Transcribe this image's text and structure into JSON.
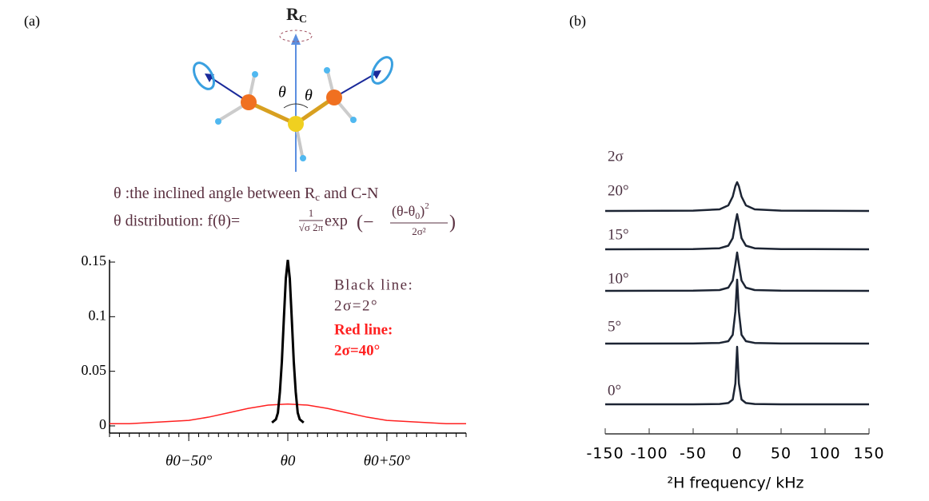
{
  "panel_labels": [
    "(a)",
    "(b)"
  ],
  "diagram": {
    "axis_label": "R",
    "axis_label_sub": "C",
    "angle_labels": [
      "θ",
      "θ"
    ]
  },
  "definition": {
    "text": "θ :the inclined angle between R",
    "sub": "c",
    "tail": " and C-N"
  },
  "formula": {
    "lead": "θ distribution: f(θ)=",
    "numerator": "1",
    "denominator": "√σ 2π",
    "func": "exp",
    "open": "(−",
    "num2": "(θ-θ",
    "num2_sub": "0",
    "num2_close": ")",
    "num2_sup": "2",
    "den2": "2σ²",
    "close": ")"
  },
  "chart_data": [
    {
      "type": "line",
      "xlim": [
        -90,
        90
      ],
      "ylim": [
        -0.0066,
        0.1522
      ],
      "xticks": [
        {
          "value": -50,
          "label": "θ0−50°"
        },
        {
          "value": 0,
          "label": "θ0"
        },
        {
          "value": 50,
          "label": "θ0+50°"
        }
      ],
      "minor_xticks": [
        -90,
        -85,
        -80,
        -75,
        -70,
        -65,
        -60,
        -55,
        -50,
        -45,
        -40,
        -35,
        -30,
        -25,
        -20,
        -15,
        -10,
        -5,
        0,
        5,
        10,
        15,
        20,
        25,
        30,
        35,
        40,
        45,
        50,
        55,
        60,
        65,
        70,
        75,
        80,
        85,
        90
      ],
      "yticks": [
        0,
        0.05,
        0.1,
        0.15
      ],
      "series": [
        {
          "name": "Black line:",
          "label": "2σ=2°",
          "color": "#000000",
          "x": [
            -8,
            -6,
            -5,
            -4,
            -3,
            -2,
            -1,
            0,
            1,
            2,
            3,
            4,
            5,
            6,
            8
          ],
          "values": [
            0.003,
            0.006,
            0.012,
            0.031,
            0.059,
            0.098,
            0.135,
            0.152,
            0.135,
            0.098,
            0.059,
            0.031,
            0.012,
            0.006,
            0.003
          ]
        },
        {
          "name": "Red line:",
          "label": "2σ=40°",
          "color": "#ff2020",
          "x": [
            -90,
            -80,
            -70,
            -60,
            -50,
            -40,
            -30,
            -20,
            -10,
            0,
            10,
            20,
            30,
            40,
            50,
            60,
            70,
            80,
            90
          ],
          "values": [
            0.002,
            0.002,
            0.003,
            0.004,
            0.005,
            0.008,
            0.012,
            0.016,
            0.019,
            0.02,
            0.019,
            0.016,
            0.012,
            0.008,
            0.005,
            0.004,
            0.003,
            0.002,
            0.002
          ]
        }
      ]
    },
    {
      "type": "ridgeline",
      "title": "2σ",
      "xlabel": "²H frequency/ kHz",
      "xlim": [
        -150,
        150
      ],
      "xticks": [
        -150,
        -100,
        -50,
        0,
        50,
        100,
        150
      ],
      "x": [
        -150,
        -50,
        -20,
        -10,
        -5,
        -2,
        0,
        2,
        5,
        10,
        20,
        50,
        150
      ],
      "series": [
        {
          "name": "20°",
          "color": "#1c2433",
          "values": [
            0,
            0.4,
            2,
            7,
            18,
            31,
            36,
            31,
            18,
            7,
            2,
            0.4,
            0
          ]
        },
        {
          "name": "15°",
          "color": "#1c2433",
          "values": [
            0,
            0.3,
            1.3,
            4.5,
            14,
            33,
            44,
            33,
            14,
            4.5,
            1.3,
            0.3,
            0
          ]
        },
        {
          "name": "10°",
          "color": "#1c2433",
          "values": [
            0,
            0.2,
            1,
            4,
            13,
            33,
            48,
            33,
            13,
            4,
            1,
            0.2,
            0
          ]
        },
        {
          "name": "5°",
          "color": "#1c2433",
          "values": [
            0,
            0.1,
            0.8,
            3,
            11,
            40,
            80,
            40,
            11,
            3,
            0.8,
            0.1,
            0
          ]
        },
        {
          "name": "0°",
          "color": "#1c2433",
          "values": [
            0,
            0,
            0.4,
            1.6,
            6,
            26,
            72,
            26,
            6,
            1.6,
            0.4,
            0,
            0
          ]
        }
      ]
    }
  ]
}
